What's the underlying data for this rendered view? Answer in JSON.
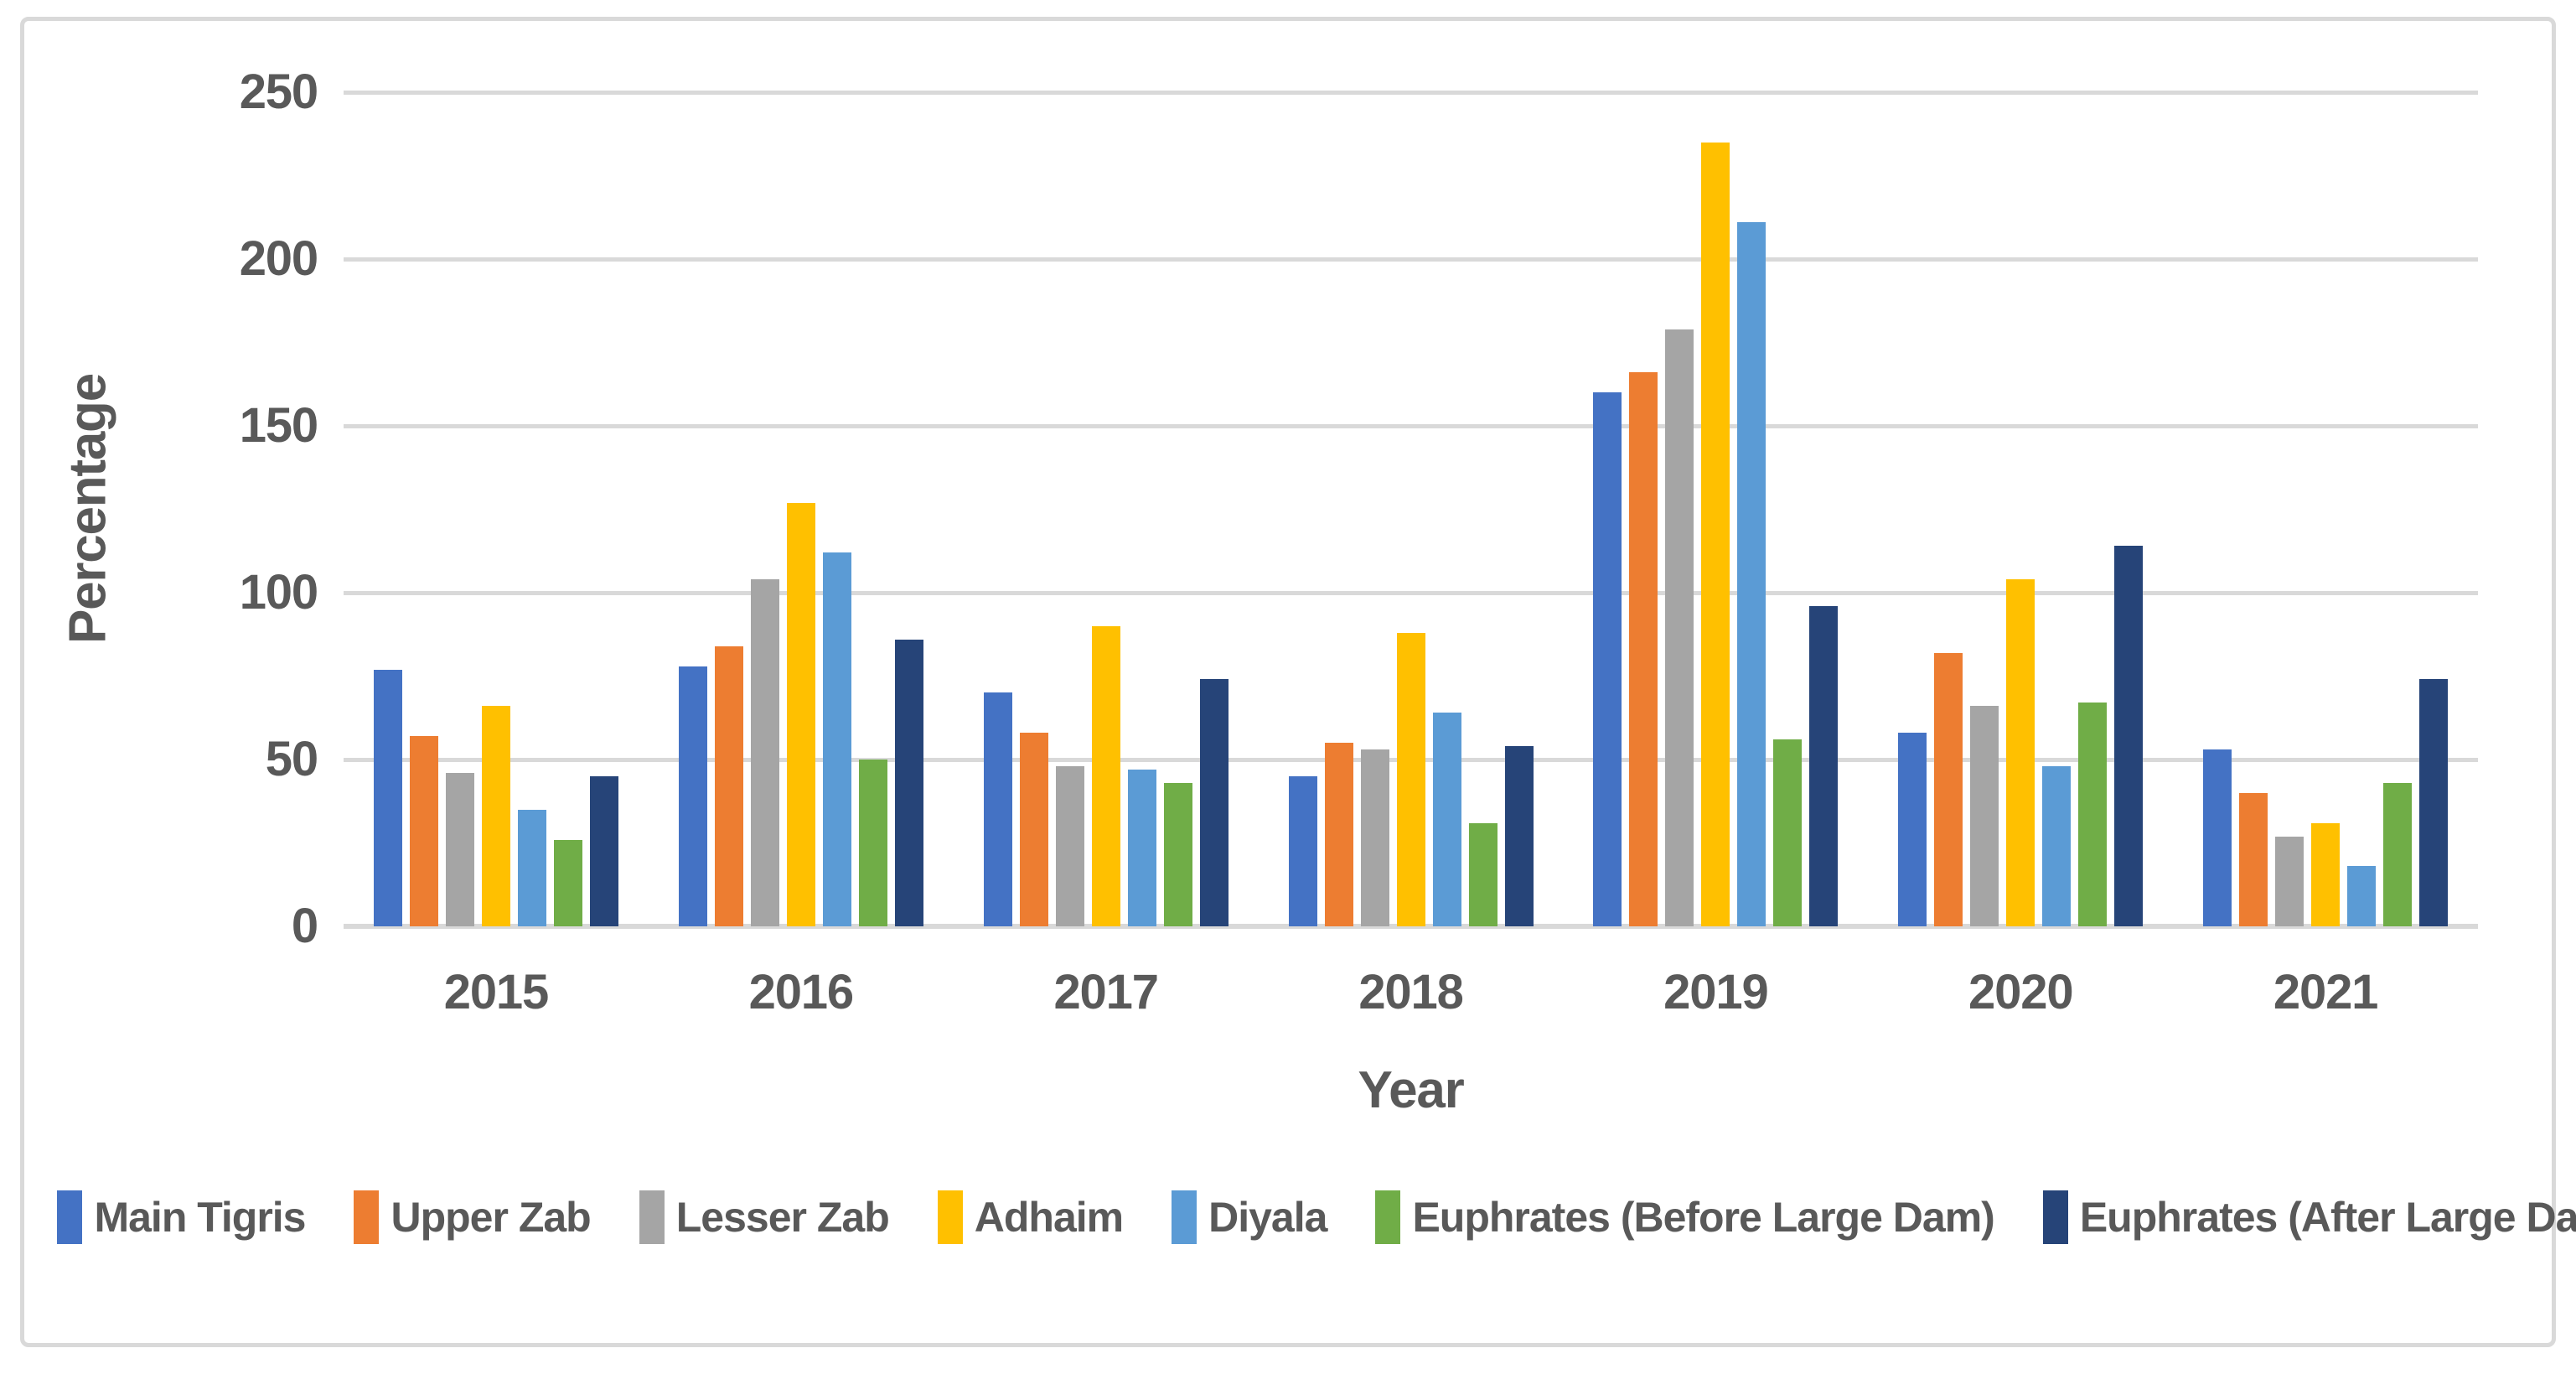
{
  "figure": {
    "background": "#FFFFFF",
    "border_color": "#D9D9D9",
    "text_color": "#595959",
    "gridline_color": "#D9D9D9"
  },
  "chart_data": {
    "type": "bar",
    "title": "",
    "xlabel": "Year",
    "ylabel": "Percentage",
    "categories": [
      "2015",
      "2016",
      "2017",
      "2018",
      "2019",
      "2020",
      "2021"
    ],
    "series": [
      {
        "name": "Main Tigris",
        "color": "#4472C4",
        "values": [
          77,
          78,
          70,
          45,
          160,
          58,
          53
        ]
      },
      {
        "name": "Upper Zab",
        "color": "#ED7D31",
        "values": [
          57,
          84,
          58,
          55,
          166,
          82,
          40
        ]
      },
      {
        "name": "Lesser Zab",
        "color": "#A5A5A5",
        "values": [
          46,
          104,
          48,
          53,
          179,
          66,
          27
        ]
      },
      {
        "name": "Adhaim",
        "color": "#FFC000",
        "values": [
          66,
          127,
          90,
          88,
          235,
          104,
          31
        ]
      },
      {
        "name": "Diyala",
        "color": "#5B9BD5",
        "values": [
          35,
          112,
          47,
          64,
          211,
          48,
          18
        ]
      },
      {
        "name": "Euphrates (Before Large Dam)",
        "color": "#70AD47",
        "values": [
          26,
          50,
          43,
          31,
          56,
          67,
          43
        ]
      },
      {
        "name": "Euphrates (After Large Dam)",
        "color": "#264478",
        "values": [
          45,
          86,
          74,
          54,
          96,
          114,
          74
        ]
      }
    ],
    "ylim": [
      0,
      250
    ],
    "ytick_step": 50,
    "yticks": [
      "0",
      "50",
      "100",
      "150",
      "200",
      "250"
    ],
    "grid": true,
    "legend_position": "bottom"
  }
}
